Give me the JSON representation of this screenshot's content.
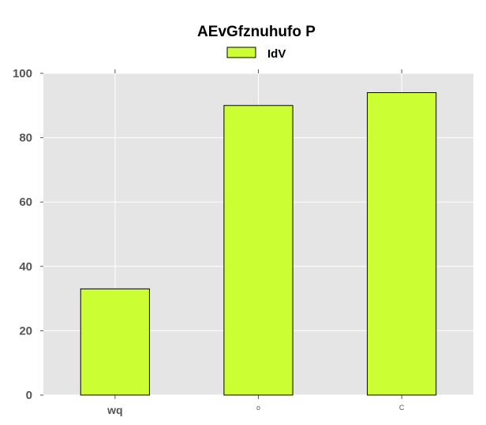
{
  "chart_data": {
    "type": "bar",
    "title": "AEvGfznuhufo P",
    "categories": [
      "wq",
      "o",
      "C"
    ],
    "series": [
      {
        "name": "IdV",
        "values": [
          33,
          90,
          94
        ],
        "color": "#ccff33"
      }
    ],
    "xlabel": "",
    "ylabel": "",
    "ylim": [
      0,
      100
    ],
    "yticks": [
      0,
      20,
      40,
      60,
      80,
      100
    ],
    "grid": true,
    "legend_position": "top-center",
    "plot_background": "#e5e5e5",
    "grid_color": "#ffffff",
    "bar_edge_color": "#000000"
  }
}
